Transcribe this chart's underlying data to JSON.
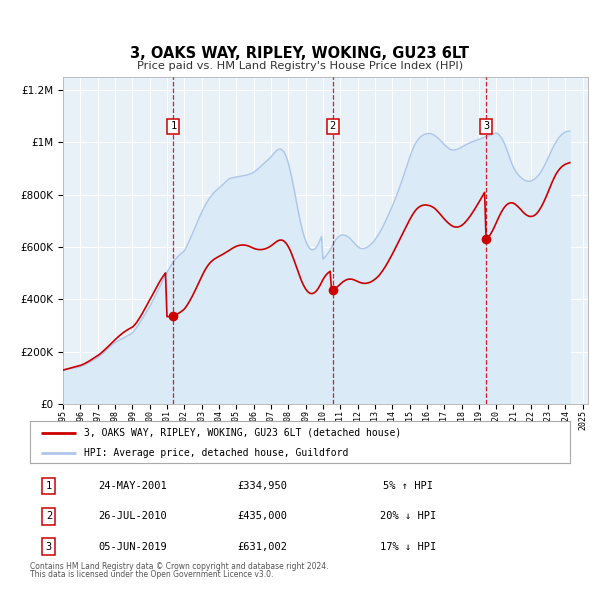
{
  "title": "3, OAKS WAY, RIPLEY, WOKING, GU23 6LT",
  "subtitle": "Price paid vs. HM Land Registry's House Price Index (HPI)",
  "hpi_label": "HPI: Average price, detached house, Guildford",
  "property_label": "3, OAKS WAY, RIPLEY, WOKING, GU23 6LT (detached house)",
  "footer_line1": "Contains HM Land Registry data © Crown copyright and database right 2024.",
  "footer_line2": "This data is licensed under the Open Government Licence v3.0.",
  "sales": [
    {
      "num": 1,
      "date": "24-MAY-2001",
      "price": 334950,
      "pct": "5%",
      "dir": "↑",
      "year": 2001.37
    },
    {
      "num": 2,
      "date": "26-JUL-2010",
      "price": 435000,
      "pct": "20%",
      "dir": "↓",
      "year": 2010.56
    },
    {
      "num": 3,
      "date": "05-JUN-2019",
      "price": 631002,
      "pct": "17%",
      "dir": "↓",
      "year": 2019.42
    }
  ],
  "hpi_color": "#aec6e8",
  "hpi_fill": "#daeaf7",
  "property_color": "#cc0000",
  "vline_color": "#cc0000",
  "dot_color": "#cc0000",
  "ylim": [
    0,
    1250000
  ],
  "xlim_start": 1995.0,
  "xlim_end": 2025.3,
  "plot_bg": "#e8f0f8"
}
